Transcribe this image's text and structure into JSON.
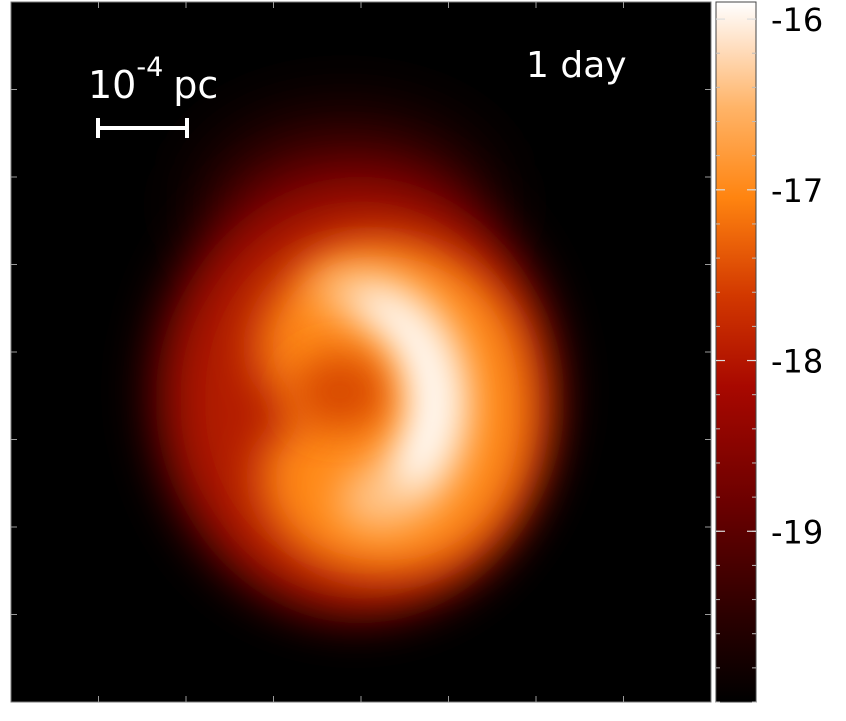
{
  "chart_data": {
    "type": "heatmap",
    "title": "",
    "xlabel": "",
    "ylabel": "",
    "annotations": {
      "time_label": "1 day",
      "scale_bar": {
        "base": "10",
        "exponent": "-4",
        "unit": "pc"
      }
    },
    "colorbar": {
      "range": [
        -20,
        -15.9
      ],
      "tick_values": [
        -16,
        -17,
        -18,
        -19
      ],
      "tick_labels": [
        "-16",
        "-17",
        "-18",
        "-19"
      ],
      "colormap": [
        "#000000",
        "#3a0000",
        "#7a0000",
        "#b81400",
        "#e24a00",
        "#ff8a10",
        "#ffb868",
        "#ffe2c4",
        "#ffffff"
      ]
    },
    "image": {
      "background": "#000000",
      "shape": "crescent"
    },
    "axes": {
      "ticks_labeled": false,
      "grid": false
    }
  }
}
